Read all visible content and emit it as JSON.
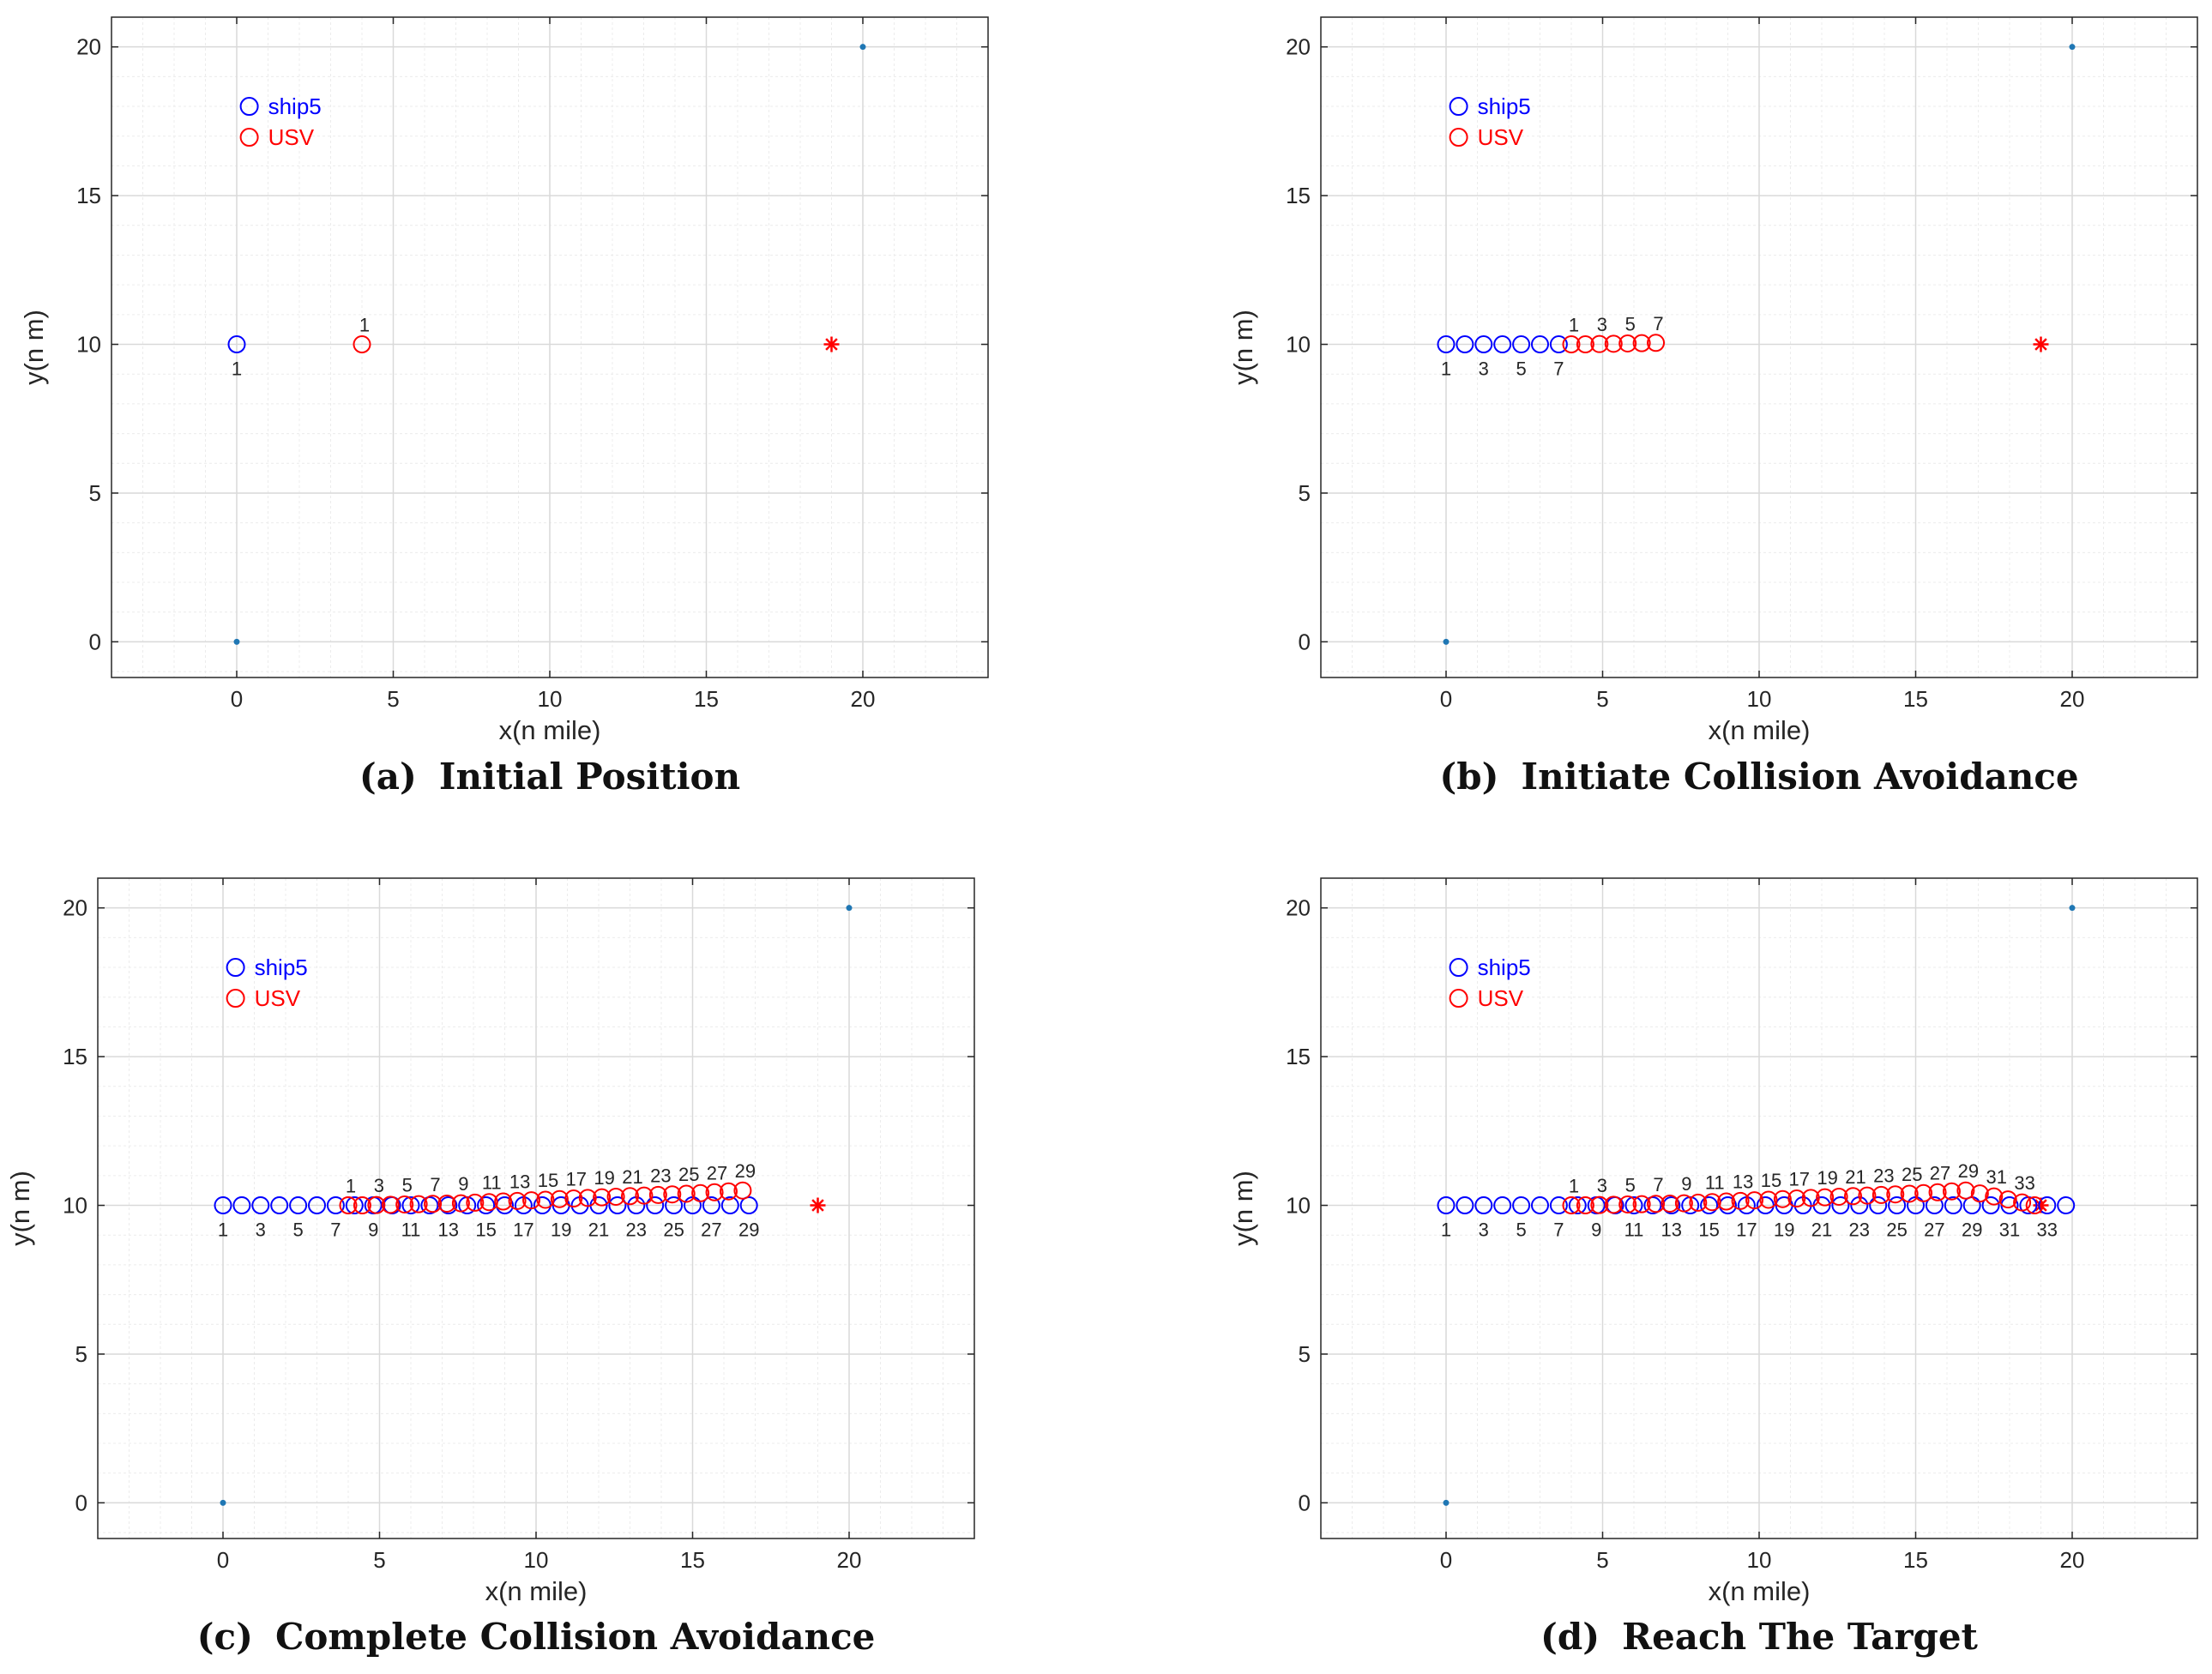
{
  "chart_data": [
    {
      "type": "scatter",
      "panel": "a",
      "caption_letter": "(a)",
      "caption_title": "Initial Position",
      "xlabel": "x(n mile)",
      "ylabel": "y(n m)",
      "xlim": [
        -4,
        24
      ],
      "ylim": [
        -1.2,
        21
      ],
      "xticks": [
        0,
        5,
        10,
        15,
        20
      ],
      "yticks": [
        0,
        5,
        10,
        15,
        20
      ],
      "grid": true,
      "legend": [
        {
          "name": "ship5",
          "color": "#0000ff"
        },
        {
          "name": "USV",
          "color": "#ff0000"
        }
      ],
      "endpoints": [
        [
          0,
          0
        ],
        [
          20,
          20
        ]
      ],
      "target": [
        19,
        10
      ],
      "ship5": {
        "x": [
          0
        ],
        "y": [
          10
        ],
        "labels": [
          "1"
        ]
      },
      "usv": {
        "x": [
          4
        ],
        "y": [
          10
        ],
        "labels": [
          "1"
        ]
      }
    },
    {
      "type": "scatter",
      "panel": "b",
      "caption_letter": "(b)",
      "caption_title": "Initiate Collision Avoidance",
      "xlabel": "x(n mile)",
      "ylabel": "y(n m)",
      "xlim": [
        -4,
        24
      ],
      "ylim": [
        -1.2,
        21
      ],
      "xticks": [
        0,
        5,
        10,
        15,
        20
      ],
      "yticks": [
        0,
        5,
        10,
        15,
        20
      ],
      "grid": true,
      "legend": [
        {
          "name": "ship5",
          "color": "#0000ff"
        },
        {
          "name": "USV",
          "color": "#ff0000"
        }
      ],
      "endpoints": [
        [
          0,
          0
        ],
        [
          20,
          20
        ]
      ],
      "target": [
        19,
        10
      ],
      "ship5": {
        "x": [
          0,
          0.6,
          1.2,
          1.8,
          2.4,
          3.0,
          3.6
        ],
        "y": [
          10,
          10,
          10,
          10,
          10,
          10,
          10
        ],
        "labels": [
          "1",
          "",
          "3",
          "",
          "5",
          "",
          "7"
        ]
      },
      "usv": {
        "x": [
          4.0,
          4.45,
          4.9,
          5.35,
          5.8,
          6.25,
          6.7
        ],
        "y": [
          10.0,
          10.0,
          10.01,
          10.02,
          10.03,
          10.04,
          10.05
        ],
        "labels": [
          "1",
          "",
          "3",
          "",
          "5",
          "",
          "7"
        ]
      }
    },
    {
      "type": "scatter",
      "panel": "c",
      "caption_letter": "(c)",
      "caption_title": "Complete Collision Avoidance",
      "xlabel": "x(n mile)",
      "ylabel": "y(n m)",
      "xlim": [
        -4,
        24
      ],
      "ylim": [
        -1.2,
        21
      ],
      "xticks": [
        0,
        5,
        10,
        15,
        20
      ],
      "yticks": [
        0,
        5,
        10,
        15,
        20
      ],
      "grid": true,
      "legend": [
        {
          "name": "ship5",
          "color": "#0000ff"
        },
        {
          "name": "USV",
          "color": "#ff0000"
        }
      ],
      "endpoints": [
        [
          0,
          0
        ],
        [
          20,
          20
        ]
      ],
      "target": [
        19,
        10
      ],
      "ship5": {
        "x": [
          0,
          0.6,
          1.2,
          1.8,
          2.4,
          3.0,
          3.6,
          4.2,
          4.8,
          5.4,
          6.0,
          6.6,
          7.2,
          7.8,
          8.4,
          9.0,
          9.6,
          10.2,
          10.8,
          11.4,
          12.0,
          12.6,
          13.2,
          13.8,
          14.4,
          15.0,
          15.6,
          16.2,
          16.8
        ],
        "y": [
          10,
          10,
          10,
          10,
          10,
          10,
          10,
          10,
          10,
          10,
          10,
          10,
          10,
          10,
          10,
          10,
          10,
          10,
          10,
          10,
          10,
          10,
          10,
          10,
          10,
          10,
          10,
          10,
          10
        ],
        "labels": [
          "1",
          "",
          "3",
          "",
          "5",
          "",
          "7",
          "",
          "9",
          "",
          "11",
          "",
          "13",
          "",
          "15",
          "",
          "17",
          "",
          "19",
          "",
          "21",
          "",
          "23",
          "",
          "25",
          "",
          "27",
          "",
          "29"
        ]
      },
      "usv": {
        "x": [
          4.0,
          4.45,
          4.9,
          5.35,
          5.8,
          6.25,
          6.7,
          7.15,
          7.6,
          8.05,
          8.5,
          8.95,
          9.4,
          9.85,
          10.3,
          10.75,
          11.2,
          11.65,
          12.1,
          12.55,
          13.0,
          13.45,
          13.9,
          14.35,
          14.8,
          15.25,
          15.7,
          16.15,
          16.6
        ],
        "y": [
          10.0,
          10.0,
          10.01,
          10.02,
          10.03,
          10.04,
          10.05,
          10.06,
          10.07,
          10.09,
          10.11,
          10.13,
          10.15,
          10.17,
          10.19,
          10.21,
          10.23,
          10.25,
          10.27,
          10.29,
          10.31,
          10.33,
          10.35,
          10.37,
          10.39,
          10.41,
          10.44,
          10.47,
          10.5
        ],
        "labels": [
          "1",
          "",
          "3",
          "",
          "5",
          "",
          "7",
          "",
          "9",
          "",
          "11",
          "",
          "13",
          "",
          "15",
          "",
          "17",
          "",
          "19",
          "",
          "21",
          "",
          "23",
          "",
          "25",
          "",
          "27",
          "",
          "29"
        ]
      }
    },
    {
      "type": "scatter",
      "panel": "d",
      "caption_letter": "(d)",
      "caption_title": "Reach The Target",
      "xlabel": "x(n mile)",
      "ylabel": "y(n m)",
      "xlim": [
        -4,
        24
      ],
      "ylim": [
        -1.2,
        21
      ],
      "xticks": [
        0,
        5,
        10,
        15,
        20
      ],
      "yticks": [
        0,
        5,
        10,
        15,
        20
      ],
      "grid": true,
      "legend": [
        {
          "name": "ship5",
          "color": "#0000ff"
        },
        {
          "name": "USV",
          "color": "#ff0000"
        }
      ],
      "endpoints": [
        [
          0,
          0
        ],
        [
          20,
          20
        ]
      ],
      "target": [
        19,
        10
      ],
      "ship5": {
        "x": [
          0,
          0.6,
          1.2,
          1.8,
          2.4,
          3.0,
          3.6,
          4.2,
          4.8,
          5.4,
          6.0,
          6.6,
          7.2,
          7.8,
          8.4,
          9.0,
          9.6,
          10.2,
          10.8,
          11.4,
          12.0,
          12.6,
          13.2,
          13.8,
          14.4,
          15.0,
          15.6,
          16.2,
          16.8,
          17.4,
          18.0,
          18.6,
          19.2,
          19.8
        ],
        "y": [
          10,
          10,
          10,
          10,
          10,
          10,
          10,
          10,
          10,
          10,
          10,
          10,
          10,
          10,
          10,
          10,
          10,
          10,
          10,
          10,
          10,
          10,
          10,
          10,
          10,
          10,
          10,
          10,
          10,
          10,
          10,
          10,
          10,
          10
        ],
        "labels": [
          "1",
          "",
          "3",
          "",
          "5",
          "",
          "7",
          "",
          "9",
          "",
          "11",
          "",
          "13",
          "",
          "15",
          "",
          "17",
          "",
          "19",
          "",
          "21",
          "",
          "23",
          "",
          "25",
          "",
          "27",
          "",
          "29",
          "",
          "31",
          "",
          "33",
          ""
        ]
      },
      "usv": {
        "x": [
          4.0,
          4.45,
          4.9,
          5.35,
          5.8,
          6.25,
          6.7,
          7.15,
          7.6,
          8.05,
          8.5,
          8.95,
          9.4,
          9.85,
          10.3,
          10.75,
          11.2,
          11.65,
          12.1,
          12.55,
          13.0,
          13.45,
          13.9,
          14.35,
          14.8,
          15.25,
          15.7,
          16.15,
          16.6,
          17.05,
          17.5,
          17.95,
          18.4,
          18.8
        ],
        "y": [
          10.0,
          10.0,
          10.01,
          10.02,
          10.03,
          10.04,
          10.05,
          10.06,
          10.07,
          10.09,
          10.11,
          10.13,
          10.15,
          10.17,
          10.19,
          10.21,
          10.23,
          10.25,
          10.27,
          10.29,
          10.31,
          10.33,
          10.35,
          10.37,
          10.39,
          10.41,
          10.44,
          10.47,
          10.5,
          10.4,
          10.3,
          10.2,
          10.1,
          10.0
        ],
        "labels": [
          "1",
          "",
          "3",
          "",
          "5",
          "",
          "7",
          "",
          "9",
          "",
          "11",
          "",
          "13",
          "",
          "15",
          "",
          "17",
          "",
          "19",
          "",
          "21",
          "",
          "23",
          "",
          "25",
          "",
          "27",
          "",
          "29",
          "",
          "31",
          "",
          "33",
          ""
        ]
      }
    }
  ]
}
